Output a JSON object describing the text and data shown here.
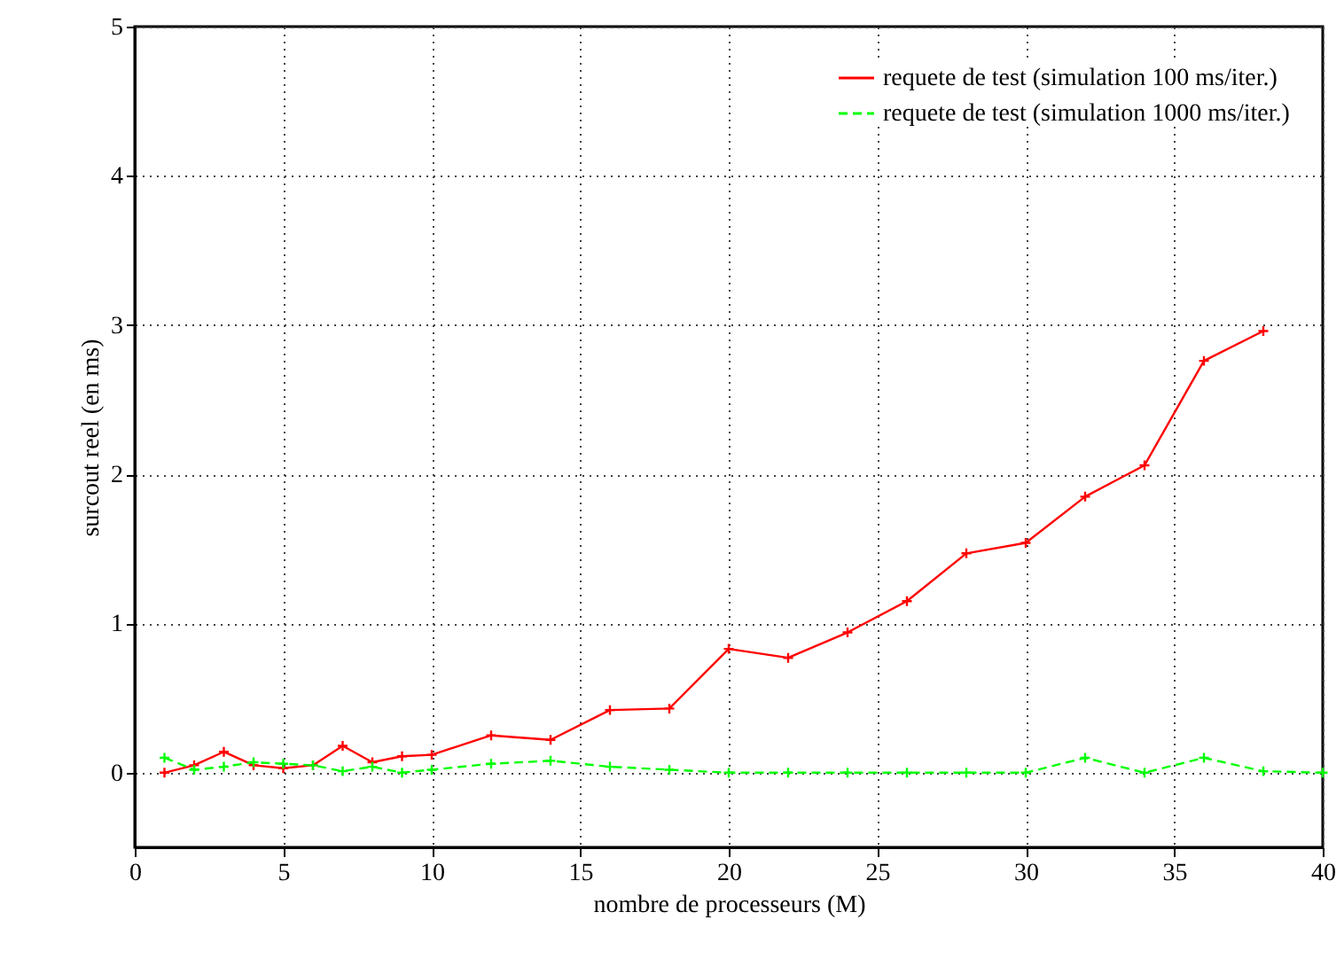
{
  "chart_data": {
    "type": "line",
    "xlabel": "nombre de processeurs (M)",
    "ylabel": "surcout reel (en ms)",
    "xlim": [
      0,
      40
    ],
    "ylim": [
      -0.5,
      5
    ],
    "xticks": [
      0,
      5,
      10,
      15,
      20,
      25,
      30,
      35,
      40
    ],
    "yticks": [
      0,
      1,
      2,
      3,
      4,
      5
    ],
    "grid": true,
    "legend": "top right",
    "series": [
      {
        "name": "requete de test (simulation 100 ms/iter.)",
        "color": "#ff0000",
        "marker": "cross",
        "line_style": "solid",
        "x": [
          1,
          2,
          3,
          4,
          5,
          6,
          7,
          8,
          9,
          10,
          12,
          14,
          16,
          18,
          20,
          22,
          24,
          26,
          28,
          30,
          32,
          34,
          36,
          38
        ],
        "values": [
          0,
          0.05,
          0.14,
          0.05,
          0.03,
          0.05,
          0.18,
          0.07,
          0.11,
          0.12,
          0.25,
          0.22,
          0.42,
          0.43,
          0.83,
          0.77,
          0.94,
          1.15,
          1.47,
          1.54,
          1.85,
          2.06,
          2.76,
          2.96
        ]
      },
      {
        "name": "requete de test (simulation 1000 ms/iter.)",
        "color": "#00ff00",
        "marker": "cross",
        "line_style": "dashed",
        "x": [
          1,
          2,
          3,
          4,
          5,
          6,
          7,
          8,
          9,
          10,
          12,
          14,
          16,
          18,
          20,
          22,
          24,
          26,
          28,
          30,
          32,
          34,
          36,
          38,
          40
        ],
        "values": [
          0.1,
          0.02,
          0.04,
          0.07,
          0.06,
          0.05,
          0.01,
          0.04,
          0,
          0.02,
          0.06,
          0.08,
          0.04,
          0.02,
          0,
          0,
          0,
          0,
          0,
          0,
          0.1,
          0,
          0.1,
          0.01,
          0
        ]
      }
    ]
  }
}
